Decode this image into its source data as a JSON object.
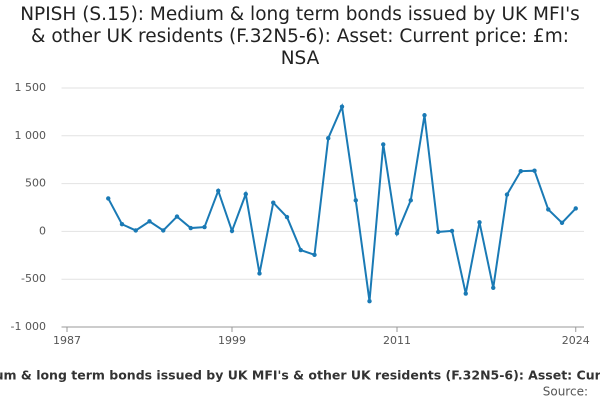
{
  "chart_data": {
    "type": "line",
    "title": "NPISH (S.15): Medium & long term bonds issued by UK MFI's & other UK residents (F.32N5-6): Asset: Current price: £m: NSA",
    "source": "Source:",
    "x": [
      1990,
      1991,
      1992,
      1993,
      1994,
      1995,
      1996,
      1997,
      1998,
      1999,
      2000,
      2001,
      2002,
      2003,
      2004,
      2005,
      2006,
      2007,
      2008,
      2009,
      2010,
      2011,
      2012,
      2013,
      2014,
      2015,
      2016,
      2017,
      2018,
      2019,
      2020,
      2021,
      2022,
      2023,
      2024
    ],
    "series": [
      {
        "color": "#1a7ab5",
        "values": [
          345,
          75,
          10,
          105,
          10,
          155,
          35,
          45,
          425,
          5,
          390,
          -440,
          300,
          150,
          -195,
          -245,
          975,
          1305,
          325,
          -730,
          910,
          -20,
          325,
          1215,
          -5,
          5,
          -650,
          95,
          -590,
          385,
          630,
          635,
          230,
          90,
          240
        ]
      }
    ],
    "xlim": [
      1986.6,
      2024.6
    ],
    "xticks": [
      1987,
      1999,
      2011,
      2024
    ],
    "ylim": [
      -1000,
      1500
    ],
    "yticks": [
      {
        "value": -1000,
        "label": "-1 000"
      },
      -500,
      0,
      500,
      {
        "value": 1000,
        "label": "1 000"
      },
      {
        "value": 1500,
        "label": "1 500"
      }
    ],
    "grid": true
  }
}
